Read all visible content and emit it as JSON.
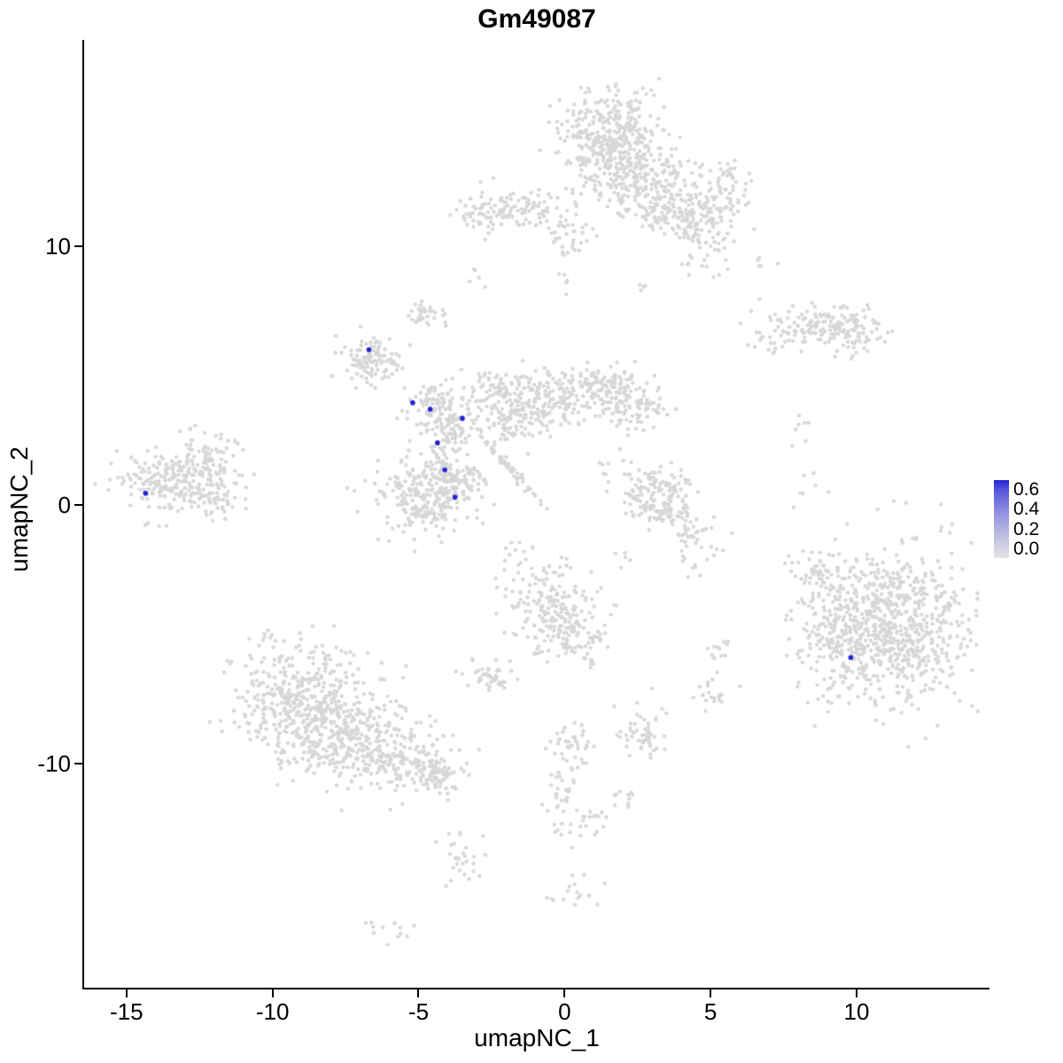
{
  "chart_data": {
    "type": "scatter",
    "title": "Gm49087",
    "xlabel": "umapNC_1",
    "ylabel": "umapNC_2",
    "xlim": [
      -16.45,
      14.52
    ],
    "ylim": [
      -18.7,
      17.98
    ],
    "grid": false,
    "x_ticks": [
      {
        "label": "-15",
        "value": -15
      },
      {
        "label": "-10",
        "value": -10
      },
      {
        "label": "-5",
        "value": -5
      },
      {
        "label": "0",
        "value": 0
      },
      {
        "label": "5",
        "value": 5
      },
      {
        "label": "10",
        "value": 10
      }
    ],
    "y_ticks": [
      {
        "label": "10",
        "value": 10
      },
      {
        "label": "0",
        "value": 0
      },
      {
        "label": "-10",
        "value": -10
      }
    ],
    "colors": {
      "base_point": "#d7d7d7",
      "highlight_point": "#2222d8",
      "axis": "#000000",
      "background": "#ffffff"
    },
    "legend": {
      "position": "right",
      "ticks": [
        "0.6",
        "0.4",
        "0.2",
        "0.0"
      ],
      "gradient_top": "#2222d8",
      "gradient_bottom": "#e4e4e4"
    },
    "clusters": [
      {
        "n": 340,
        "cx": 1.6,
        "cy": 14.3,
        "sx": 0.85,
        "sy": 0.85
      },
      {
        "n": 240,
        "cx": 2.4,
        "cy": 12.7,
        "sx": 0.9,
        "sy": 0.75
      },
      {
        "n": 110,
        "cx": 3.6,
        "cy": 11.4,
        "sx": 0.6,
        "sy": 0.55
      },
      {
        "n": 90,
        "cx": 4.8,
        "cy": 10.5,
        "sx": 0.5,
        "sy": 0.8
      },
      {
        "n": 70,
        "cx": 5.4,
        "cy": 12.1,
        "sx": 0.5,
        "sy": 0.6
      },
      {
        "n": 90,
        "cx": -1.4,
        "cy": 11.5,
        "sx": 1.0,
        "sy": 0.4
      },
      {
        "n": 40,
        "cx": -2.9,
        "cy": 11.2,
        "sx": 0.5,
        "sy": 0.35
      },
      {
        "n": 25,
        "cx": 0.3,
        "cy": 10.8,
        "sx": 0.6,
        "sy": 0.5
      },
      {
        "n": 15,
        "cx": 0.1,
        "cy": 9.5,
        "sx": 0.3,
        "sy": 0.6
      },
      {
        "n": 5,
        "cx": -2.9,
        "cy": 8.7,
        "sx": 0.2,
        "sy": 0.2
      },
      {
        "n": 4,
        "cx": 2.6,
        "cy": 8.5,
        "sx": 0.2,
        "sy": 0.15
      },
      {
        "n": 5,
        "cx": 6.8,
        "cy": 9.3,
        "sx": 0.25,
        "sy": 0.2
      },
      {
        "n": 130,
        "cx": 8.6,
        "cy": 6.9,
        "sx": 1.0,
        "sy": 0.35
      },
      {
        "n": 55,
        "cx": 10.0,
        "cy": 6.6,
        "sx": 0.45,
        "sy": 0.5
      },
      {
        "n": 12,
        "cx": 7.0,
        "cy": 6.2,
        "sx": 0.3,
        "sy": 0.2
      },
      {
        "n": 35,
        "cx": -4.7,
        "cy": 7.3,
        "sx": 0.3,
        "sy": 0.25
      },
      {
        "n": 110,
        "cx": -6.6,
        "cy": 5.6,
        "sx": 0.5,
        "sy": 0.5
      },
      {
        "n": 170,
        "cx": -0.5,
        "cy": 4.2,
        "sx": 1.1,
        "sy": 0.5
      },
      {
        "n": 130,
        "cx": 1.5,
        "cy": 4.3,
        "sx": 0.8,
        "sy": 0.5
      },
      {
        "n": 55,
        "cx": 2.6,
        "cy": 3.6,
        "sx": 0.5,
        "sy": 0.4
      },
      {
        "n": 110,
        "cx": -1.6,
        "cy": 3.4,
        "sx": 0.7,
        "sy": 0.45
      },
      {
        "n": 85,
        "cx": -4.5,
        "cy": 3.8,
        "sx": 0.55,
        "sy": 0.45
      },
      {
        "n": 60,
        "cx": -3.6,
        "cy": 3.1,
        "sx": 0.5,
        "sy": 0.4
      },
      {
        "n": 45,
        "cx": -2.6,
        "cy": 4.6,
        "sx": 0.5,
        "sy": 0.35
      },
      {
        "n": 75,
        "cx": -4.2,
        "cy": 1.6,
        "sx": 0.35,
        "sy": 0.8
      },
      {
        "n": 60,
        "cx": -1.9,
        "cy": 1.45,
        "sx": 0.75,
        "sy": 0.08,
        "rot": -53
      },
      {
        "n": 15,
        "cx": 1.9,
        "cy": 1.6,
        "sx": 0.5,
        "sy": 0.5
      },
      {
        "n": 250,
        "cx": -4.8,
        "cy": 0.3,
        "sx": 0.85,
        "sy": 0.7
      },
      {
        "n": 55,
        "cx": -3.4,
        "cy": 0.9,
        "sx": 0.4,
        "sy": 0.4
      },
      {
        "n": 10,
        "cx": -1.7,
        "cy": -2.2,
        "sx": 0.4,
        "sy": 0.4
      },
      {
        "n": 200,
        "cx": -13.5,
        "cy": 0.9,
        "sx": 0.85,
        "sy": 0.7
      },
      {
        "n": 80,
        "cx": -12.2,
        "cy": 1.8,
        "sx": 0.6,
        "sy": 0.55
      },
      {
        "n": 50,
        "cx": -11.9,
        "cy": 0.3,
        "sx": 0.5,
        "sy": 0.4
      },
      {
        "n": 165,
        "cx": 3.3,
        "cy": 0.3,
        "shape": "ring",
        "r": 0.8,
        "rs": 0.28
      },
      {
        "n": 40,
        "cx": 4.35,
        "cy": -1.2,
        "sx": 0.35,
        "sy": 0.45
      },
      {
        "n": 680,
        "cx": 11.3,
        "cy": -4.6,
        "sx": 1.25,
        "sy": 1.45
      },
      {
        "n": 200,
        "cx": 9.4,
        "cy": -4.9,
        "sx": 0.85,
        "sy": 1.25
      },
      {
        "n": 55,
        "cx": 8.6,
        "cy": -2.6,
        "sx": 0.5,
        "sy": 0.5
      },
      {
        "n": 8,
        "cx": 8.2,
        "cy": 3.2,
        "sx": 0.25,
        "sy": 0.45
      },
      {
        "n": 6,
        "cx": 8.3,
        "cy": 1.1,
        "sx": 0.2,
        "sy": 0.5
      },
      {
        "n": 440,
        "cx": -9.0,
        "cy": -7.6,
        "sx": 1.1,
        "sy": 1.15
      },
      {
        "n": 290,
        "cx": -7.2,
        "cy": -9.0,
        "sx": 1.15,
        "sy": 0.9
      },
      {
        "n": 150,
        "cx": -5.4,
        "cy": -9.9,
        "sx": 0.9,
        "sy": 0.55
      },
      {
        "n": 55,
        "cx": -4.4,
        "cy": -10.5,
        "sx": 0.5,
        "sy": 0.35
      },
      {
        "n": 175,
        "cx": -0.5,
        "cy": -3.8,
        "sx": 0.8,
        "sy": 0.8
      },
      {
        "n": 75,
        "cx": 0.3,
        "cy": -5.2,
        "sx": 0.6,
        "sy": 0.5
      },
      {
        "n": 45,
        "cx": -2.6,
        "cy": -6.6,
        "sx": 0.4,
        "sy": 0.35
      },
      {
        "n": 55,
        "cx": 2.6,
        "cy": -8.9,
        "sx": 0.4,
        "sy": 0.5
      },
      {
        "n": 22,
        "cx": 5.0,
        "cy": -7.3,
        "sx": 0.3,
        "sy": 0.3
      },
      {
        "n": 12,
        "cx": 5.3,
        "cy": -5.5,
        "sx": 0.25,
        "sy": 0.25
      },
      {
        "n": 38,
        "cx": 0.3,
        "cy": -9.3,
        "sx": 0.45,
        "sy": 0.4
      },
      {
        "n": 32,
        "cx": -0.1,
        "cy": -11.0,
        "sx": 0.35,
        "sy": 0.7
      },
      {
        "n": 22,
        "cx": 0.6,
        "cy": -12.3,
        "sx": 0.5,
        "sy": 0.3
      },
      {
        "n": 10,
        "cx": 2.1,
        "cy": -11.3,
        "sx": 0.3,
        "sy": 0.2
      },
      {
        "n": 28,
        "cx": -3.6,
        "cy": -13.6,
        "sx": 0.35,
        "sy": 0.45
      },
      {
        "n": 18,
        "cx": 0.4,
        "cy": -14.9,
        "sx": 0.45,
        "sy": 0.3
      },
      {
        "n": 12,
        "cx": -6.1,
        "cy": -16.4,
        "sx": 0.4,
        "sy": 0.2
      },
      {
        "n": 5,
        "cx": 4.6,
        "cy": -2.6,
        "sx": 0.25,
        "sy": 0.25
      },
      {
        "n": 5,
        "cx": 2.0,
        "cy": -2.0,
        "sx": 0.25,
        "sy": 0.2
      }
    ],
    "highlighted_points": [
      {
        "x": -6.7,
        "y": 6.0,
        "value": 0.6
      },
      {
        "x": -5.2,
        "y": 3.95,
        "value": 0.6
      },
      {
        "x": -4.6,
        "y": 3.7,
        "value": 0.6
      },
      {
        "x": -3.5,
        "y": 3.35,
        "value": 0.5
      },
      {
        "x": -4.35,
        "y": 2.4,
        "value": 0.6
      },
      {
        "x": -4.1,
        "y": 1.35,
        "value": 0.6
      },
      {
        "x": -3.75,
        "y": 0.3,
        "value": 0.6
      },
      {
        "x": -14.35,
        "y": 0.45,
        "value": 0.6
      },
      {
        "x": 9.8,
        "y": -5.9,
        "value": 0.6
      }
    ]
  }
}
